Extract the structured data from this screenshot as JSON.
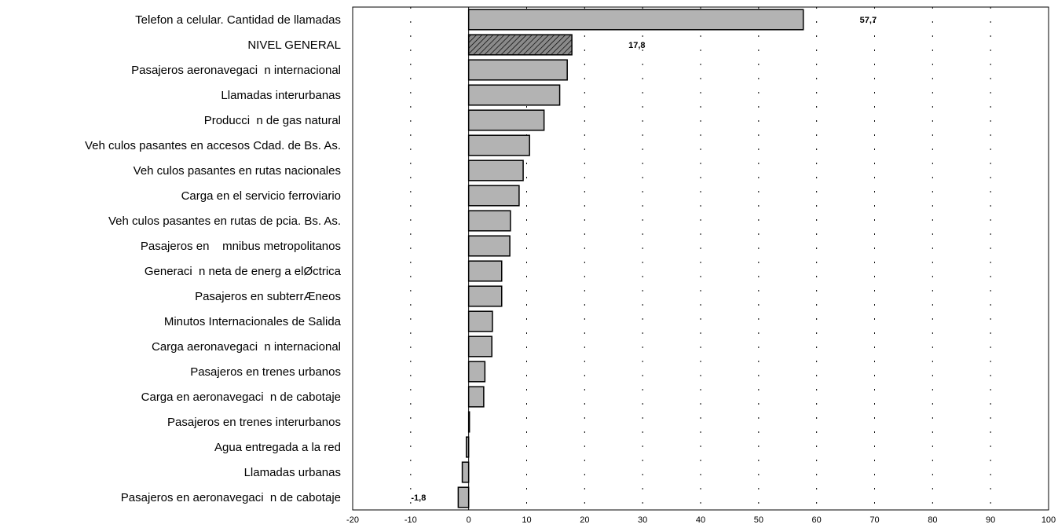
{
  "chart_data": {
    "type": "bar",
    "orientation": "horizontal",
    "categories": [
      "Telefon a celular. Cantidad de llamadas",
      "NIVEL GENERAL",
      "Pasajeros aeronavegaci  n internacional",
      "Llamadas interurbanas",
      "Producci  n de gas natural",
      "Veh culos pasantes en accesos Cdad. de Bs. As.",
      "Veh culos pasantes en rutas nacionales",
      "Carga en el servicio ferroviario",
      "Veh culos pasantes en rutas de pcia. Bs. As.",
      "Pasajeros en    mnibus metropolitanos",
      "Generaci  n neta de energ a elØctrica",
      "Pasajeros en subterrÆneos",
      "Minutos Internacionales de Salida",
      "Carga aeronavegaci  n internacional",
      "Pasajeros en trenes urbanos",
      "Carga en aeronavegaci  n de cabotaje",
      "Pasajeros en trenes interurbanos",
      "Agua entregada a la red",
      "Llamadas urbanas",
      "Pasajeros en aeronavegaci  n de cabotaje"
    ],
    "values": [
      57.7,
      17.8,
      17.0,
      15.7,
      13.0,
      10.5,
      9.4,
      8.7,
      7.2,
      7.1,
      5.7,
      5.7,
      4.1,
      4.0,
      2.8,
      2.6,
      0.1,
      -0.4,
      -1.1,
      -1.8
    ],
    "data_labels": [
      {
        "index": 0,
        "text": "57,7"
      },
      {
        "index": 1,
        "text": "17,8"
      },
      {
        "index": 19,
        "text": "-1,8"
      }
    ],
    "highlight_index": 1,
    "x_ticks": [
      -20,
      -10,
      0,
      10,
      20,
      30,
      40,
      50,
      60,
      70,
      80,
      90,
      100
    ],
    "xlim": [
      -20,
      100
    ],
    "grid": "vertical dashed",
    "colors": {
      "bar_fill": "#b3b3b3",
      "bar_stroke": "#000000",
      "highlight_fill": "#7f7f7f",
      "frame": "#000000",
      "grid": "#000000"
    }
  }
}
